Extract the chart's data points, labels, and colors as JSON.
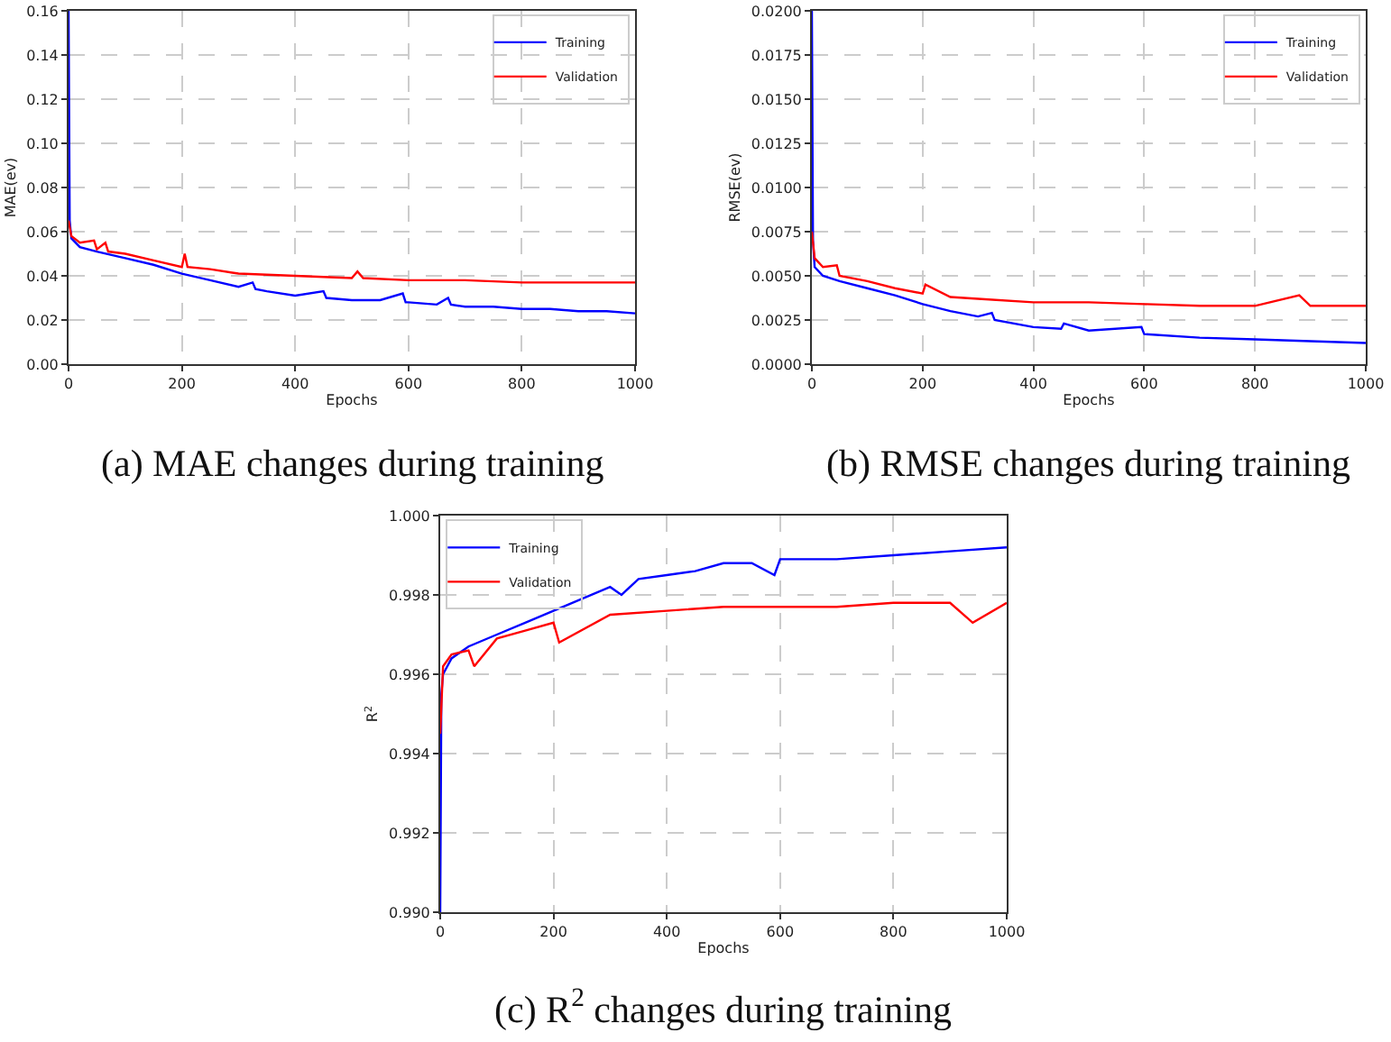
{
  "chart_data": [
    {
      "type": "line",
      "xlabel": "Epochs",
      "ylabel": "MAE(ev)",
      "annotations": [
        "(a) MAE changes during training"
      ],
      "legend": "top right",
      "grid": true,
      "xlim": [
        0,
        1000
      ],
      "xticks": [
        0,
        200,
        400,
        600,
        800,
        1000
      ],
      "ylim": [
        0,
        0.16
      ],
      "yticks": [
        {
          "value": 0,
          "label": "0.00"
        },
        {
          "value": 0.02,
          "label": "0.02"
        },
        {
          "value": 0.04,
          "label": "0.04"
        },
        {
          "value": 0.06,
          "label": "0.06"
        },
        {
          "value": 0.08,
          "label": "0.08"
        },
        {
          "value": 0.1,
          "label": "0.10"
        },
        {
          "value": 0.12,
          "label": "0.12"
        },
        {
          "value": 0.14,
          "label": "0.14"
        },
        {
          "value": 0.16,
          "label": "0.16"
        }
      ],
      "series": [
        {
          "name": "Training",
          "color": "#0000ff",
          "x": [
            0,
            2,
            5,
            20,
            50,
            100,
            150,
            200,
            250,
            300,
            325,
            330,
            350,
            400,
            450,
            455,
            500,
            550,
            590,
            595,
            600,
            650,
            670,
            675,
            700,
            750,
            800,
            850,
            900,
            950,
            1000
          ],
          "values": [
            0.16,
            0.065,
            0.057,
            0.053,
            0.051,
            0.048,
            0.045,
            0.041,
            0.038,
            0.035,
            0.037,
            0.034,
            0.033,
            0.031,
            0.033,
            0.03,
            0.029,
            0.029,
            0.032,
            0.028,
            0.028,
            0.027,
            0.03,
            0.027,
            0.026,
            0.026,
            0.025,
            0.025,
            0.024,
            0.024,
            0.023
          ]
        },
        {
          "name": "Validation",
          "color": "#ff0000",
          "x": [
            0,
            5,
            20,
            45,
            50,
            65,
            70,
            100,
            150,
            200,
            205,
            210,
            250,
            300,
            400,
            500,
            510,
            520,
            600,
            700,
            800,
            900,
            1000
          ],
          "values": [
            0.065,
            0.058,
            0.055,
            0.056,
            0.052,
            0.055,
            0.051,
            0.05,
            0.047,
            0.044,
            0.05,
            0.044,
            0.043,
            0.041,
            0.04,
            0.039,
            0.042,
            0.039,
            0.038,
            0.038,
            0.037,
            0.037,
            0.037
          ]
        }
      ]
    },
    {
      "type": "line",
      "xlabel": "Epochs",
      "ylabel": "RMSE(ev)",
      "annotations": [
        "(b) RMSE changes during training"
      ],
      "legend": "top right",
      "grid": true,
      "xlim": [
        0,
        1000
      ],
      "xticks": [
        0,
        200,
        400,
        600,
        800,
        1000
      ],
      "ylim": [
        0,
        0.02
      ],
      "yticks": [
        {
          "value": 0,
          "label": "0.0000"
        },
        {
          "value": 0.0025,
          "label": "0.0025"
        },
        {
          "value": 0.005,
          "label": "0.0050"
        },
        {
          "value": 0.0075,
          "label": "0.0075"
        },
        {
          "value": 0.01,
          "label": "0.0100"
        },
        {
          "value": 0.0125,
          "label": "0.0125"
        },
        {
          "value": 0.015,
          "label": "0.0150"
        },
        {
          "value": 0.0175,
          "label": "0.0175"
        },
        {
          "value": 0.02,
          "label": "0.0200"
        }
      ],
      "series": [
        {
          "name": "Training",
          "color": "#0000ff",
          "x": [
            0,
            2,
            5,
            20,
            50,
            100,
            150,
            200,
            250,
            300,
            325,
            330,
            400,
            450,
            455,
            500,
            595,
            600,
            700,
            800,
            900,
            1000
          ],
          "values": [
            0.02,
            0.007,
            0.0055,
            0.005,
            0.0047,
            0.0043,
            0.0039,
            0.0034,
            0.003,
            0.0027,
            0.0029,
            0.0025,
            0.0021,
            0.002,
            0.0023,
            0.0019,
            0.0021,
            0.0017,
            0.0015,
            0.0014,
            0.0013,
            0.0012
          ]
        },
        {
          "name": "Validation",
          "color": "#ff0000",
          "x": [
            0,
            5,
            20,
            45,
            50,
            100,
            150,
            200,
            205,
            250,
            300,
            400,
            500,
            600,
            700,
            800,
            880,
            900,
            1000
          ],
          "values": [
            0.0075,
            0.006,
            0.0055,
            0.0056,
            0.005,
            0.0047,
            0.0043,
            0.004,
            0.0045,
            0.0038,
            0.0037,
            0.0035,
            0.0035,
            0.0034,
            0.0033,
            0.0033,
            0.0039,
            0.0033,
            0.0033
          ]
        }
      ]
    },
    {
      "type": "line",
      "xlabel": "Epochs",
      "ylabel": "R$^{2}$",
      "annotations": [
        "(c) R$^{2}$ changes during training"
      ],
      "legend": "top left",
      "grid": true,
      "xlim": [
        0,
        1000
      ],
      "xticks": [
        0,
        200,
        400,
        600,
        800,
        1000
      ],
      "ylim": [
        0.99,
        1.0
      ],
      "yticks": [
        {
          "value": 0.99,
          "label": "0.990"
        },
        {
          "value": 0.992,
          "label": "0.992"
        },
        {
          "value": 0.994,
          "label": "0.994"
        },
        {
          "value": 0.996,
          "label": "0.996"
        },
        {
          "value": 0.998,
          "label": "0.998"
        },
        {
          "value": 1.0,
          "label": "1.000"
        }
      ],
      "series": [
        {
          "name": "Training",
          "color": "#0000ff",
          "x": [
            0,
            2,
            5,
            20,
            50,
            100,
            150,
            200,
            250,
            300,
            320,
            350,
            400,
            450,
            500,
            550,
            590,
            600,
            700,
            800,
            900,
            1000
          ],
          "values": [
            0.99,
            0.9955,
            0.996,
            0.9964,
            0.9967,
            0.997,
            0.9973,
            0.9976,
            0.9979,
            0.9982,
            0.998,
            0.9984,
            0.9985,
            0.9986,
            0.9988,
            0.9988,
            0.9985,
            0.9989,
            0.9989,
            0.999,
            0.9991,
            0.9992
          ]
        },
        {
          "name": "Validation",
          "color": "#ff0000",
          "x": [
            0,
            5,
            20,
            50,
            60,
            100,
            150,
            200,
            210,
            300,
            400,
            500,
            600,
            700,
            800,
            900,
            940,
            1000
          ],
          "values": [
            0.9945,
            0.9962,
            0.9965,
            0.9966,
            0.9962,
            0.9969,
            0.9971,
            0.9973,
            0.9968,
            0.9975,
            0.9976,
            0.9977,
            0.9977,
            0.9977,
            0.9978,
            0.9978,
            0.9973,
            0.9978
          ]
        }
      ]
    }
  ]
}
